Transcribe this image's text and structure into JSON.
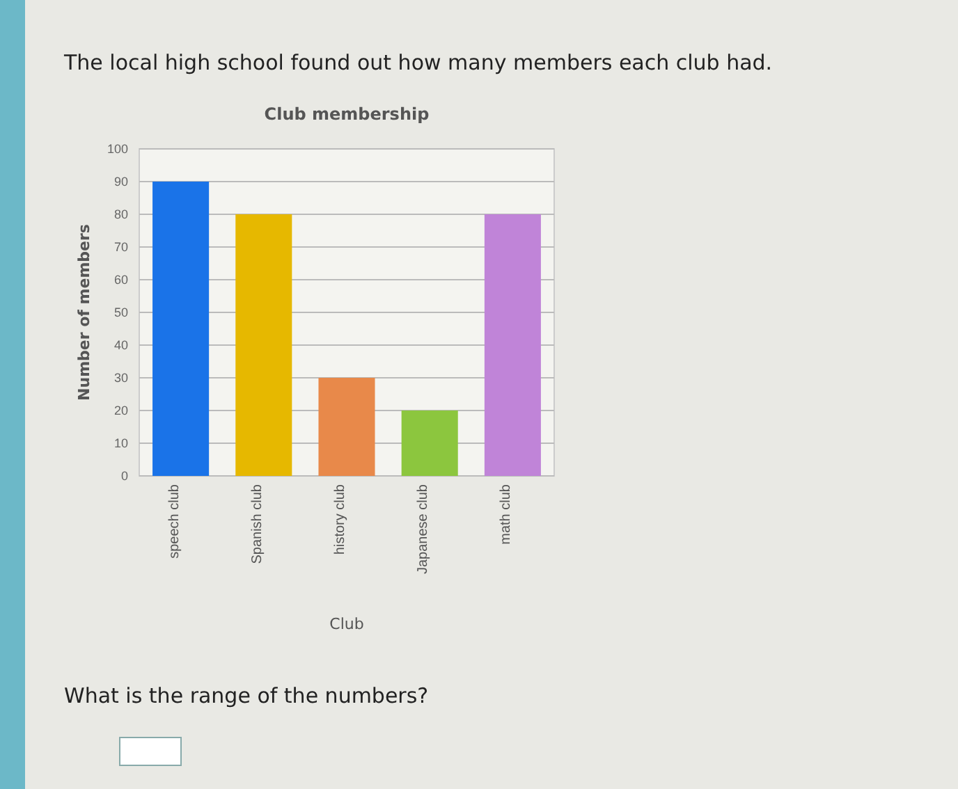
{
  "chart_data": {
    "type": "bar",
    "title": "Club membership",
    "xlabel": "Club",
    "ylabel": "Number of members",
    "categories": [
      "speech club",
      "Spanish club",
      "history club",
      "Japanese club",
      "math club"
    ],
    "values": [
      90,
      80,
      30,
      20,
      80
    ],
    "colors": [
      "#1a73e8",
      "#e6b800",
      "#e8894a",
      "#8cc63e",
      "#c084d8"
    ],
    "ylim": [
      0,
      100
    ],
    "yticks": [
      0,
      10,
      20,
      30,
      40,
      50,
      60,
      70,
      80,
      90,
      100
    ],
    "grid": "y",
    "annotations": [
      "The local high school found out how many members each club had.",
      "What is the range of the numbers?"
    ]
  }
}
